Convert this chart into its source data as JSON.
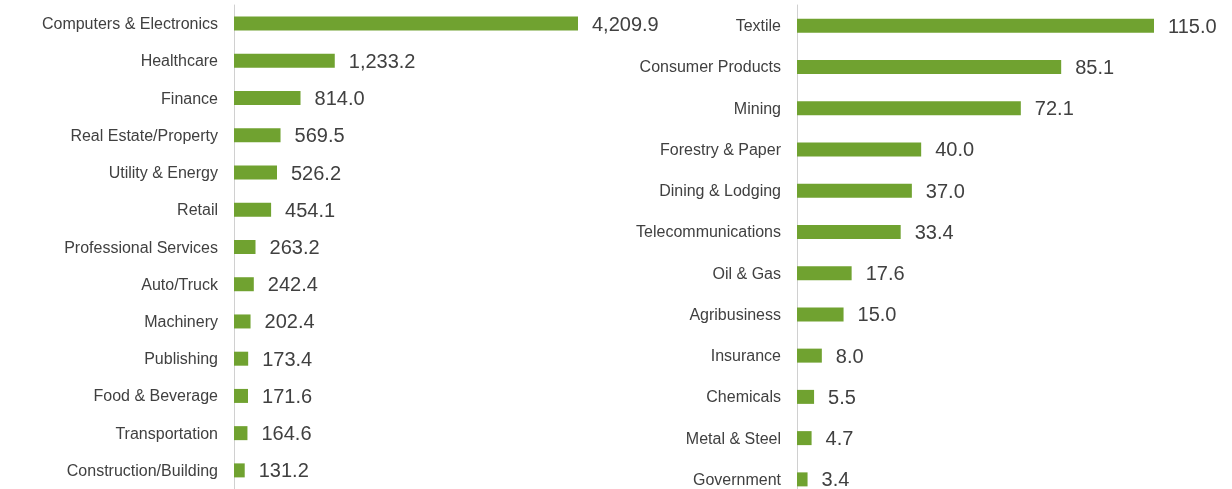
{
  "chart_data": [
    {
      "type": "bar",
      "orientation": "horizontal",
      "color": "#70a230",
      "categories": [
        "Computers & Electronics",
        "Healthcare",
        "Finance",
        "Real Estate/Property",
        "Utility & Energy",
        "Retail",
        "Professional Services",
        "Auto/Truck",
        "Machinery",
        "Publishing",
        "Food & Beverage",
        "Transportation",
        "Construction/Building"
      ],
      "values": [
        4209.9,
        1233.2,
        814.0,
        569.5,
        526.2,
        454.1,
        263.2,
        242.4,
        202.4,
        173.4,
        171.6,
        164.6,
        131.2
      ],
      "value_labels": [
        "4,209.9",
        "1,233.2",
        "814.0",
        "569.5",
        "526.2",
        "454.1",
        "263.2",
        "242.4",
        "202.4",
        "173.4",
        "171.6",
        "164.6",
        "131.2"
      ]
    },
    {
      "type": "bar",
      "orientation": "horizontal",
      "color": "#70a230",
      "categories": [
        "Textile",
        "Consumer Products",
        "Mining",
        "Forestry & Paper",
        "Dining & Lodging",
        "Telecommunications",
        "Oil & Gas",
        "Agribusiness",
        "Insurance",
        "Chemicals",
        "Metal & Steel",
        "Government"
      ],
      "values": [
        115.0,
        85.1,
        72.1,
        40.0,
        37.0,
        33.4,
        17.6,
        15.0,
        8.0,
        5.5,
        4.7,
        3.4
      ],
      "value_labels": [
        "115.0",
        "85.1",
        "72.1",
        "40.0",
        "37.0",
        "33.4",
        "17.6",
        "15.0",
        "8.0",
        "5.5",
        "4.7",
        "3.4"
      ]
    }
  ]
}
